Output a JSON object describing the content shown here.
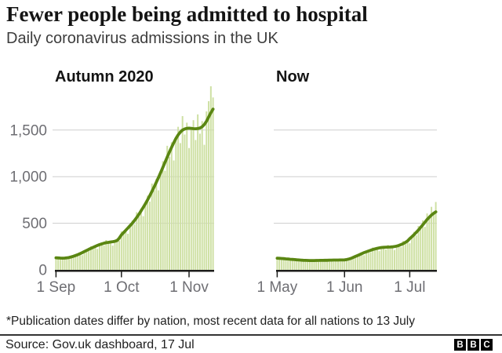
{
  "header": {
    "title": "Fewer people being admitted to hospital",
    "subtitle": "Daily coronavirus admissions in the UK"
  },
  "footer": {
    "note": "*Publication dates differ by nation, most recent data for all nations to 13 July",
    "source": "Source: Gov.uk dashboard, 17 Jul",
    "logo_letters": [
      "B",
      "B",
      "C"
    ]
  },
  "colors": {
    "bar": "#cee0a3",
    "line": "#5a8612",
    "gridline": "#cdcdcd",
    "axis": "#1d1d1b",
    "axis_label": "#6e6e73"
  },
  "chart_data": [
    {
      "type": "bar+line",
      "title": "Autumn 2020",
      "ylim": [
        0,
        2000
      ],
      "show_y_labels": true,
      "grid": true,
      "y_ticks": [
        {
          "value": 0,
          "label": "0"
        },
        {
          "value": 500,
          "label": "500"
        },
        {
          "value": 1000,
          "label": "1,000"
        },
        {
          "value": 1500,
          "label": "1,500"
        }
      ],
      "x_ticks": [
        {
          "label": "1 Sep",
          "day": 0
        },
        {
          "label": "1 Oct",
          "day": 30
        },
        {
          "label": "1 Nov",
          "day": 61
        }
      ],
      "bars": [
        138,
        118,
        139,
        120,
        131,
        111,
        133,
        147,
        134,
        169,
        156,
        180,
        158,
        196,
        220,
        202,
        254,
        232,
        262,
        225,
        271,
        296,
        263,
        320,
        283,
        311,
        260,
        306,
        334,
        313,
        413,
        384,
        442,
        387,
        475,
        530,
        488,
        618,
        572,
        657,
        576,
        710,
        797,
        732,
        926,
        854,
        978,
        853,
        1046,
        1166,
        1063,
        1331,
        1213,
        1369,
        1174,
        1410,
        1535,
        1360,
        1650,
        1452,
        1579,
        1307,
        1518,
        1606,
        1393,
        1668,
        1461,
        1596,
        1342,
        1700,
        1810,
        1970,
        1850
      ],
      "line": [
        130,
        128,
        126,
        125,
        126,
        129,
        133,
        139,
        146,
        154,
        163,
        173,
        184,
        196,
        208,
        220,
        231,
        242,
        252,
        262,
        271,
        279,
        286,
        291,
        295,
        299,
        302,
        306,
        315,
        340,
        375,
        400,
        425,
        450,
        475,
        500,
        530,
        562,
        596,
        632,
        670,
        710,
        752,
        796,
        842,
        890,
        940,
        992,
        1046,
        1100,
        1155,
        1210,
        1264,
        1316,
        1365,
        1410,
        1448,
        1478,
        1500,
        1512,
        1518,
        1520,
        1518,
        1515,
        1514,
        1516,
        1522,
        1535,
        1560,
        1595,
        1640,
        1685,
        1725
      ]
    },
    {
      "type": "bar+line",
      "title": "Now",
      "ylim": [
        0,
        2000
      ],
      "show_y_labels": false,
      "grid": true,
      "y_ticks": [
        {
          "value": 0,
          "label": "0"
        },
        {
          "value": 500,
          "label": "500"
        },
        {
          "value": 1000,
          "label": "1,000"
        },
        {
          "value": 1500,
          "label": "1,500"
        }
      ],
      "x_ticks": [
        {
          "label": "1 May",
          "day": 0
        },
        {
          "label": "1 Jun",
          "day": 31
        },
        {
          "label": "1 Jul",
          "day": 61
        }
      ],
      "bars": [
        131,
        112,
        134,
        114,
        125,
        99,
        114,
        118,
        99,
        119,
        101,
        110,
        88,
        102,
        106,
        90,
        110,
        95,
        107,
        86,
        102,
        107,
        93,
        113,
        99,
        110,
        89,
        105,
        110,
        95,
        117,
        102,
        117,
        99,
        124,
        141,
        130,
        169,
        156,
        186,
        157,
        194,
        212,
        189,
        240,
        214,
        245,
        201,
        240,
        254,
        219,
        268,
        233,
        262,
        213,
        255,
        275,
        244,
        310,
        280,
        329,
        285,
        355,
        408,
        370,
        471,
        437,
        531,
        461,
        605,
        554,
        676,
        606,
        728
      ],
      "line": [
        125,
        124,
        122,
        120,
        118,
        116,
        114,
        112,
        110,
        108,
        106,
        104,
        103,
        102,
        101,
        100,
        100,
        100,
        101,
        101,
        102,
        102,
        103,
        103,
        104,
        104,
        105,
        105,
        105,
        106,
        106,
        107,
        110,
        116,
        124,
        134,
        144,
        154,
        164,
        175,
        185,
        194,
        202,
        210,
        218,
        225,
        231,
        236,
        240,
        242,
        243,
        244,
        245,
        247,
        250,
        255,
        262,
        271,
        282,
        295,
        310,
        335,
        355,
        378,
        402,
        428,
        455,
        483,
        512,
        540,
        565,
        588,
        606,
        622
      ]
    }
  ]
}
